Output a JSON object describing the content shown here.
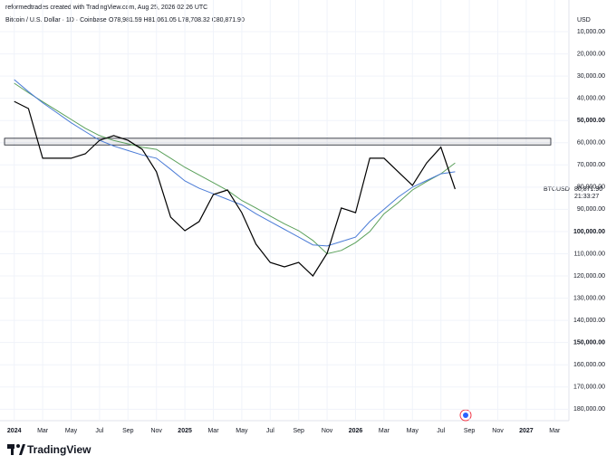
{
  "chart_data": {
    "type": "line",
    "credit": "reformedtrades created with TradingView.com, Aug 25, 2026 02:26 UTC",
    "title": "Bitcoin / U.S. Dollar · 1D · Coinbase",
    "ohlc": "O78,981.59 H81,061.05 L78,708.32 C80,871.90",
    "currency": "USD",
    "symbol": "BTCUSD",
    "last_label": "80,871.90",
    "countdown": "21:33:27",
    "brand": "TradingView",
    "inverted": true,
    "ylim": [
      4000,
      185000
    ],
    "yticks": [
      {
        "value": 10000,
        "label": "10,000.00"
      },
      {
        "value": 20000,
        "label": "20,000.00"
      },
      {
        "value": 30000,
        "label": "30,000.00"
      },
      {
        "value": 40000,
        "label": "40,000.00"
      },
      {
        "value": 50000,
        "label": "50,000.00"
      },
      {
        "value": 60000,
        "label": "60,000.00"
      },
      {
        "value": 70000,
        "label": "70,000.00"
      },
      {
        "value": 80000,
        "label": "80,000.00"
      },
      {
        "value": 90000,
        "label": "90,000.00"
      },
      {
        "value": 100000,
        "label": "100,000.00"
      },
      {
        "value": 110000,
        "label": "110,000.00"
      },
      {
        "value": 120000,
        "label": "120,000.00"
      },
      {
        "value": 130000,
        "label": "130,000.00"
      },
      {
        "value": 140000,
        "label": "140,000.00"
      },
      {
        "value": 150000,
        "label": "150,000.00"
      },
      {
        "value": 160000,
        "label": "160,000.00"
      },
      {
        "value": 170000,
        "label": "170,000.00"
      },
      {
        "value": 180000,
        "label": "180,000.00"
      }
    ],
    "xlim": [
      "2023-12",
      "2027-04"
    ],
    "xticks": [
      {
        "value": "2024-01",
        "label": "2024"
      },
      {
        "value": "2024-03",
        "label": "Mar"
      },
      {
        "value": "2024-05",
        "label": "May"
      },
      {
        "value": "2024-07",
        "label": "Jul"
      },
      {
        "value": "2024-09",
        "label": "Sep"
      },
      {
        "value": "2024-11",
        "label": "Nov"
      },
      {
        "value": "2025-01",
        "label": "2025"
      },
      {
        "value": "2025-03",
        "label": "Mar"
      },
      {
        "value": "2025-05",
        "label": "May"
      },
      {
        "value": "2025-07",
        "label": "Jul"
      },
      {
        "value": "2025-09",
        "label": "Sep"
      },
      {
        "value": "2025-11",
        "label": "Nov"
      },
      {
        "value": "2026-01",
        "label": "2026"
      },
      {
        "value": "2026-03",
        "label": "Mar"
      },
      {
        "value": "2026-05",
        "label": "May"
      },
      {
        "value": "2026-07",
        "label": "Jul"
      },
      {
        "value": "2026-09",
        "label": "Sep"
      },
      {
        "value": "2026-11",
        "label": "Nov"
      },
      {
        "value": "2027-01",
        "label": "2027"
      },
      {
        "value": "2027-03",
        "label": "Mar"
      }
    ],
    "zone": [
      58000,
      61000
    ],
    "x": [
      "2024-01",
      "2024-02",
      "2024-03",
      "2024-04",
      "2024-05",
      "2024-06",
      "2024-07",
      "2024-08",
      "2024-09",
      "2024-10",
      "2024-11",
      "2024-12",
      "2025-01",
      "2025-02",
      "2025-03",
      "2025-04",
      "2025-05",
      "2025-06",
      "2025-07",
      "2025-08",
      "2025-09",
      "2025-10",
      "2025-11",
      "2025-12",
      "2026-01",
      "2026-02",
      "2026-03",
      "2026-04",
      "2026-05",
      "2026-06",
      "2026-07",
      "2026-08"
    ],
    "series": [
      {
        "color": "#000000",
        "values": [
          41400,
          44600,
          67000,
          67000,
          67000,
          65000,
          58900,
          56800,
          58900,
          63000,
          73100,
          93500,
          99600,
          95500,
          83300,
          81300,
          91500,
          105700,
          113900,
          115900,
          113900,
          120000,
          109800,
          89400,
          91500,
          67000,
          67000,
          73100,
          79200,
          69100,
          62000,
          80871.9
        ]
      },
      {
        "color": "#4a7bd6",
        "values": [
          31600,
          37000,
          42000,
          46500,
          51000,
          55000,
          58900,
          61500,
          63500,
          65500,
          67000,
          72000,
          77200,
          80500,
          83000,
          85500,
          88000,
          92000,
          95500,
          99000,
          102500,
          106000,
          106500,
          104500,
          102500,
          95500,
          90000,
          84500,
          80000,
          77000,
          74000,
          73100
        ]
      },
      {
        "color": "#5aa05a",
        "values": [
          33200,
          37500,
          41500,
          45500,
          49500,
          53500,
          56800,
          59000,
          60500,
          62000,
          63000,
          67000,
          71100,
          74500,
          78000,
          81500,
          86000,
          89400,
          93000,
          96500,
          99600,
          104000,
          110000,
          108500,
          105000,
          100000,
          92000,
          87000,
          81300,
          77500,
          74000,
          69100
        ]
      }
    ]
  }
}
